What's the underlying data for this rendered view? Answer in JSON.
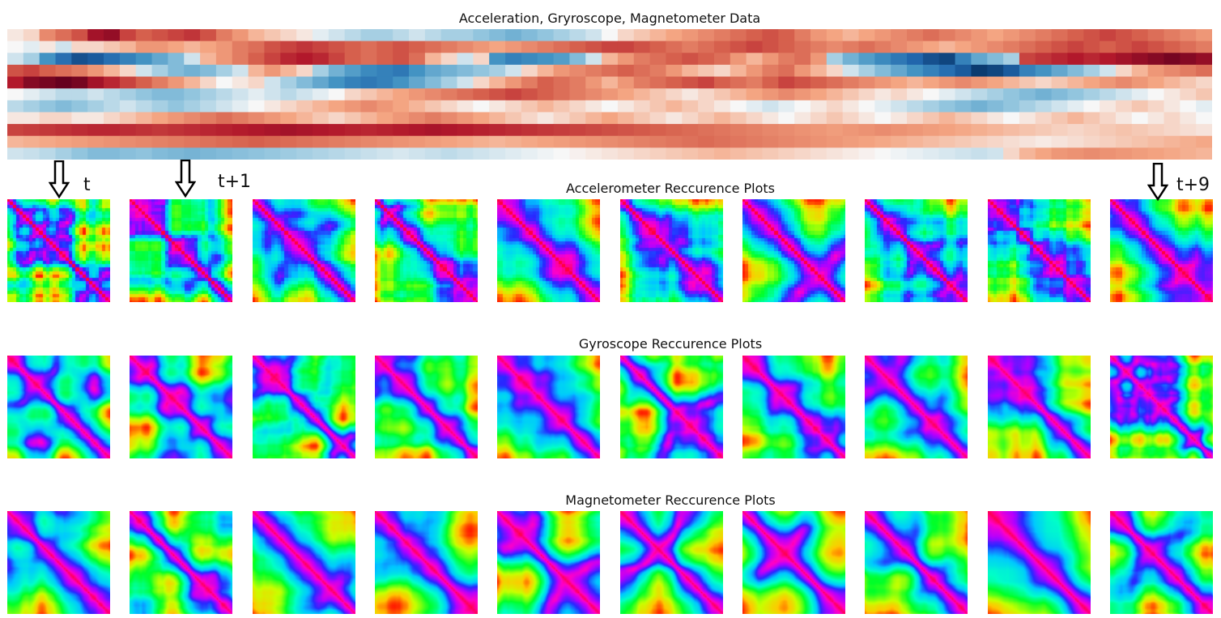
{
  "chart_data": [
    {
      "type": "heatmap",
      "title": "Acceleration, Gryroscope, Magnetometer Data",
      "colormap": "RdBu_r",
      "rows": [
        [
          0.05,
          0.1,
          0.35,
          0.45,
          0.55,
          0.8,
          0.85,
          0.6,
          0.5,
          0.55,
          0.6,
          0.65,
          0.55,
          0.4,
          0.3,
          0.2,
          0.15,
          0.1,
          0.05,
          -0.05,
          -0.1,
          -0.15,
          -0.2,
          -0.2,
          -0.15,
          -0.1,
          -0.15,
          -0.2,
          -0.2,
          -0.25,
          -0.3,
          -0.35,
          -0.3,
          -0.25,
          -0.2,
          -0.15,
          -0.1,
          0.0,
          0.1,
          0.15,
          0.2,
          0.25,
          0.3,
          0.35,
          0.4,
          0.45,
          0.5,
          0.55,
          0.5,
          0.4,
          0.3,
          0.25,
          0.2,
          0.25,
          0.3,
          0.35,
          0.4,
          0.45,
          0.4,
          0.35,
          0.3,
          0.25,
          0.3,
          0.35,
          0.4,
          0.45,
          0.5,
          0.55,
          0.6,
          0.55,
          0.5,
          0.45,
          0.4,
          0.35,
          0.3
        ],
        [
          0.0,
          -0.05,
          0.05,
          -0.1,
          0.1,
          0.1,
          0.15,
          0.2,
          0.3,
          0.3,
          0.25,
          0.2,
          0.25,
          0.3,
          0.4,
          0.45,
          0.55,
          0.6,
          0.65,
          0.6,
          0.55,
          0.5,
          0.45,
          0.5,
          0.55,
          0.5,
          0.45,
          0.4,
          0.35,
          0.3,
          0.25,
          0.3,
          0.35,
          0.4,
          0.45,
          0.5,
          0.55,
          0.6,
          0.6,
          0.55,
          0.5,
          0.45,
          0.4,
          0.45,
          0.5,
          0.55,
          0.6,
          0.55,
          0.5,
          0.45,
          0.4,
          0.35,
          0.4,
          0.45,
          0.4,
          0.35,
          0.3,
          0.25,
          0.2,
          0.25,
          0.3,
          0.35,
          0.4,
          0.45,
          0.5,
          0.55,
          0.6,
          0.55,
          0.5,
          0.55,
          0.6,
          0.55,
          0.5,
          0.45,
          0.4
        ],
        [
          -0.1,
          -0.2,
          -0.5,
          -0.7,
          -0.85,
          -0.8,
          -0.7,
          -0.6,
          -0.5,
          -0.4,
          -0.3,
          -0.1,
          0.2,
          0.3,
          0.4,
          0.5,
          0.6,
          0.7,
          0.75,
          0.7,
          0.6,
          0.5,
          0.45,
          0.5,
          0.55,
          0.45,
          0.2,
          0.1,
          -0.1,
          0.1,
          -0.5,
          -0.6,
          -0.55,
          -0.5,
          -0.45,
          -0.3,
          -0.1,
          0.2,
          0.3,
          0.4,
          0.45,
          0.5,
          0.55,
          0.5,
          0.45,
          0.3,
          0.2,
          0.3,
          0.4,
          0.45,
          0.3,
          -0.2,
          -0.35,
          -0.45,
          -0.55,
          -0.65,
          -0.75,
          -0.85,
          -0.9,
          -0.6,
          -0.4,
          -0.3,
          -0.2,
          0.6,
          0.65,
          0.7,
          0.75,
          0.7,
          0.75,
          0.8,
          0.85,
          0.9,
          0.95,
          0.9,
          0.85
        ],
        [
          0.55,
          0.6,
          0.5,
          0.45,
          0.4,
          0.3,
          0.2,
          0.1,
          -0.1,
          -0.2,
          -0.3,
          -0.35,
          -0.3,
          -0.2,
          -0.1,
          0.2,
          0.3,
          0.2,
          0.1,
          -0.2,
          -0.35,
          -0.45,
          -0.55,
          -0.6,
          -0.65,
          -0.5,
          -0.4,
          -0.35,
          -0.3,
          -0.25,
          -0.2,
          -0.1,
          0.1,
          0.2,
          0.3,
          0.35,
          0.4,
          0.45,
          0.5,
          0.45,
          0.4,
          0.3,
          0.2,
          0.15,
          0.1,
          0.2,
          0.3,
          0.4,
          0.45,
          0.3,
          0.2,
          0.1,
          -0.1,
          -0.2,
          -0.3,
          -0.4,
          -0.5,
          -0.6,
          -0.7,
          -0.8,
          -0.95,
          -0.9,
          -0.8,
          -0.6,
          -0.5,
          -0.4,
          -0.3,
          -0.2,
          -0.1,
          0.1,
          0.2,
          0.3,
          0.35,
          0.4,
          0.45
        ],
        [
          0.75,
          0.9,
          0.95,
          1.0,
          0.95,
          0.8,
          0.7,
          0.6,
          0.5,
          0.4,
          0.3,
          0.2,
          0.1,
          0.0,
          0.05,
          0.1,
          -0.1,
          -0.2,
          -0.3,
          -0.4,
          -0.5,
          -0.6,
          -0.65,
          -0.6,
          -0.5,
          -0.4,
          -0.3,
          -0.2,
          -0.1,
          0.1,
          0.2,
          0.3,
          0.4,
          0.5,
          0.45,
          0.4,
          0.3,
          0.2,
          0.3,
          0.4,
          0.45,
          0.5,
          0.55,
          0.6,
          0.5,
          0.45,
          0.4,
          0.5,
          0.6,
          0.55,
          0.5,
          0.45,
          0.4,
          0.35,
          0.3,
          0.25,
          0.2,
          0.25,
          0.3,
          0.35,
          0.3,
          0.25,
          0.2,
          0.15,
          0.1,
          0.15,
          0.2,
          0.25,
          0.3,
          0.35,
          0.3,
          0.25,
          0.2,
          0.15,
          0.1
        ],
        [
          0.0,
          -0.05,
          -0.1,
          -0.15,
          -0.15,
          -0.1,
          -0.15,
          -0.2,
          -0.25,
          -0.3,
          -0.3,
          -0.25,
          -0.2,
          -0.15,
          -0.1,
          -0.05,
          -0.1,
          -0.15,
          -0.1,
          -0.05,
          0.0,
          0.1,
          0.15,
          0.2,
          0.25,
          0.3,
          0.35,
          0.4,
          0.45,
          0.5,
          0.55,
          0.6,
          0.55,
          0.5,
          0.45,
          0.4,
          0.35,
          0.3,
          0.25,
          0.2,
          0.15,
          0.1,
          0.05,
          0.1,
          0.15,
          0.2,
          0.25,
          0.3,
          0.35,
          0.3,
          0.25,
          0.2,
          0.15,
          0.1,
          0.05,
          0.1,
          0.05,
          0.0,
          -0.05,
          -0.1,
          -0.15,
          -0.2,
          -0.25,
          -0.3,
          -0.35,
          -0.3,
          -0.25,
          -0.2,
          -0.15,
          -0.1,
          -0.05,
          0.0,
          0.05,
          0.1,
          0.15
        ],
        [
          -0.15,
          -0.2,
          -0.25,
          -0.3,
          -0.25,
          -0.2,
          -0.15,
          -0.1,
          -0.15,
          -0.2,
          -0.25,
          -0.2,
          -0.15,
          -0.1,
          -0.05,
          0.0,
          0.05,
          0.1,
          0.15,
          0.2,
          0.25,
          0.3,
          0.35,
          0.3,
          0.25,
          0.2,
          0.15,
          0.1,
          0.05,
          0.0,
          0.05,
          0.1,
          0.15,
          0.2,
          0.15,
          0.1,
          0.05,
          0.0,
          0.05,
          0.1,
          0.15,
          0.2,
          0.15,
          0.1,
          0.05,
          0.0,
          -0.05,
          -0.1,
          -0.05,
          0.0,
          0.05,
          0.1,
          0.05,
          0.0,
          -0.05,
          -0.1,
          -0.15,
          -0.2,
          -0.25,
          -0.3,
          -0.35,
          -0.3,
          -0.25,
          -0.2,
          -0.15,
          -0.1,
          -0.05,
          0.0,
          0.05,
          0.1,
          0.15,
          0.1,
          0.05,
          0.0,
          -0.05
        ],
        [
          0.05,
          0.05,
          0.1,
          0.1,
          0.05,
          0.05,
          0.1,
          0.15,
          0.2,
          0.25,
          0.3,
          0.35,
          0.4,
          0.45,
          0.4,
          0.35,
          0.3,
          0.25,
          0.2,
          0.15,
          0.1,
          0.15,
          0.2,
          0.25,
          0.3,
          0.35,
          0.4,
          0.35,
          0.3,
          0.25,
          0.2,
          0.15,
          0.1,
          0.05,
          0.1,
          0.15,
          0.2,
          0.25,
          0.2,
          0.15,
          0.1,
          0.05,
          0.1,
          0.15,
          0.2,
          0.15,
          0.1,
          0.05,
          0.0,
          0.05,
          0.1,
          0.15,
          0.1,
          0.05,
          0.0,
          0.05,
          0.1,
          0.15,
          0.2,
          0.15,
          0.1,
          0.05,
          0.0,
          0.05,
          0.1,
          0.15,
          0.2,
          0.15,
          0.1,
          0.05,
          0.0,
          0.05,
          0.1,
          0.05,
          0.0
        ],
        [
          0.6,
          0.62,
          0.64,
          0.66,
          0.68,
          0.7,
          0.7,
          0.68,
          0.66,
          0.64,
          0.66,
          0.68,
          0.7,
          0.72,
          0.74,
          0.76,
          0.78,
          0.8,
          0.78,
          0.76,
          0.74,
          0.72,
          0.7,
          0.72,
          0.74,
          0.76,
          0.78,
          0.76,
          0.74,
          0.72,
          0.7,
          0.68,
          0.66,
          0.64,
          0.62,
          0.6,
          0.58,
          0.56,
          0.54,
          0.52,
          0.5,
          0.48,
          0.46,
          0.44,
          0.42,
          0.4,
          0.38,
          0.36,
          0.34,
          0.32,
          0.3,
          0.28,
          0.3,
          0.32,
          0.34,
          0.32,
          0.3,
          0.28,
          0.26,
          0.24,
          0.22,
          0.2,
          0.18,
          0.16,
          0.14,
          0.12,
          0.1,
          0.12,
          0.14,
          0.16,
          0.14,
          0.12,
          0.1,
          0.08,
          0.06
        ],
        [
          0.2,
          0.22,
          0.24,
          0.26,
          0.28,
          0.3,
          0.32,
          0.34,
          0.36,
          0.38,
          0.4,
          0.42,
          0.44,
          0.46,
          0.48,
          0.5,
          0.48,
          0.46,
          0.44,
          0.42,
          0.4,
          0.38,
          0.36,
          0.34,
          0.32,
          0.3,
          0.28,
          0.26,
          0.24,
          0.22,
          0.2,
          0.22,
          0.24,
          0.26,
          0.28,
          0.3,
          0.32,
          0.34,
          0.36,
          0.38,
          0.4,
          0.42,
          0.44,
          0.46,
          0.44,
          0.42,
          0.4,
          0.38,
          0.36,
          0.34,
          0.32,
          0.3,
          0.28,
          0.26,
          0.24,
          0.22,
          0.2,
          0.18,
          0.16,
          0.14,
          0.12,
          0.1,
          0.08,
          0.06,
          0.04,
          0.06,
          0.08,
          0.1,
          0.12,
          0.14,
          0.16,
          0.18,
          0.2,
          0.22,
          0.24
        ],
        [
          -0.1,
          -0.12,
          -0.15,
          -0.2,
          -0.25,
          -0.3,
          -0.3,
          -0.28,
          -0.26,
          -0.3,
          -0.32,
          -0.34,
          -0.32,
          -0.3,
          -0.28,
          -0.26,
          -0.24,
          -0.22,
          -0.2,
          -0.18,
          -0.16,
          -0.14,
          -0.12,
          -0.1,
          -0.08,
          -0.1,
          -0.12,
          -0.14,
          -0.12,
          -0.1,
          -0.08,
          -0.06,
          -0.04,
          -0.02,
          0.0,
          0.02,
          0.04,
          0.06,
          0.08,
          0.1,
          0.12,
          0.14,
          0.16,
          0.18,
          0.2,
          0.18,
          0.16,
          0.14,
          0.12,
          0.1,
          0.08,
          0.06,
          0.04,
          0.02,
          0.0,
          -0.02,
          -0.04,
          -0.06,
          -0.08,
          -0.1,
          -0.12,
          -0.1,
          0.1,
          0.2,
          0.25,
          0.3,
          0.32,
          0.34,
          0.32,
          0.3,
          0.28,
          0.26,
          0.24,
          0.22,
          0.2
        ]
      ],
      "value_range": [
        -1,
        1
      ]
    },
    {
      "type": "heatmap",
      "title": "Accelerometer Reccurence Plots",
      "colormap": "gist_rainbow",
      "panel_count": 10
    },
    {
      "type": "heatmap",
      "title": "Gyroscope Reccurence Plots",
      "colormap": "gist_rainbow",
      "panel_count": 10
    },
    {
      "type": "heatmap",
      "title": "Magnetometer Reccurence Plots",
      "colormap": "gist_rainbow",
      "panel_count": 10
    }
  ],
  "annotations": {
    "arrows": [
      "t",
      "t+1",
      "t+9"
    ]
  }
}
